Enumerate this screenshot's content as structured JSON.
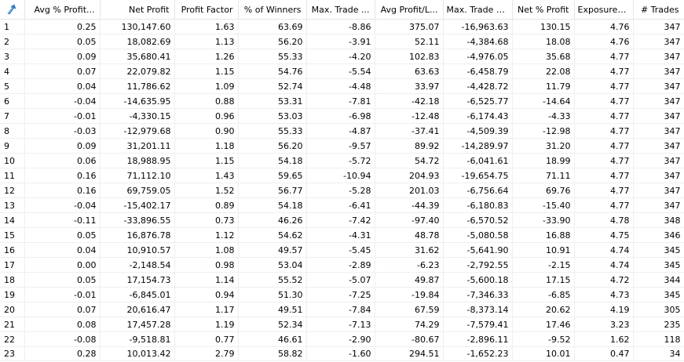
{
  "columns": [
    {
      "key": "idx",
      "label": ""
    },
    {
      "key": "avg_pct_profit",
      "label": "Avg % Profit..."
    },
    {
      "key": "net_profit",
      "label": "Net Profit"
    },
    {
      "key": "profit_factor",
      "label": "Profit Factor"
    },
    {
      "key": "pct_winners",
      "label": "% of Winners"
    },
    {
      "key": "max_trade",
      "label": "Max. Trade ..."
    },
    {
      "key": "avg_profit_loss",
      "label": "Avg Profit/L..."
    },
    {
      "key": "max_trade_dd",
      "label": "Max. Trade D..."
    },
    {
      "key": "net_pct_profit",
      "label": "Net % Profit"
    },
    {
      "key": "exposure",
      "label": "Exposure %"
    },
    {
      "key": "trades",
      "label": "# Trades"
    }
  ],
  "sort_icon": "sort-arrow-icon",
  "rows": [
    [
      "1",
      "0.25",
      "130,147.60",
      "1.63",
      "63.69",
      "-8.86",
      "375.07",
      "-16,963.63",
      "130.15",
      "4.76",
      "347"
    ],
    [
      "2",
      "0.05",
      "18,082.69",
      "1.13",
      "56.20",
      "-3.91",
      "52.11",
      "-4,384.68",
      "18.08",
      "4.76",
      "347"
    ],
    [
      "3",
      "0.09",
      "35,680.41",
      "1.26",
      "55.33",
      "-4.20",
      "102.83",
      "-4,976.05",
      "35.68",
      "4.77",
      "347"
    ],
    [
      "4",
      "0.07",
      "22,079.82",
      "1.15",
      "54.76",
      "-5.54",
      "63.63",
      "-6,458.79",
      "22.08",
      "4.77",
      "347"
    ],
    [
      "5",
      "0.04",
      "11,786.62",
      "1.09",
      "52.74",
      "-4.48",
      "33.97",
      "-4,428.72",
      "11.79",
      "4.77",
      "347"
    ],
    [
      "6",
      "-0.04",
      "-14,635.95",
      "0.88",
      "53.31",
      "-7.81",
      "-42.18",
      "-6,525.77",
      "-14.64",
      "4.77",
      "347"
    ],
    [
      "7",
      "-0.01",
      "-4,330.15",
      "0.96",
      "53.03",
      "-6.98",
      "-12.48",
      "-6,174.43",
      "-4.33",
      "4.77",
      "347"
    ],
    [
      "8",
      "-0.03",
      "-12,979.68",
      "0.90",
      "55.33",
      "-4.87",
      "-37.41",
      "-4,509.39",
      "-12.98",
      "4.77",
      "347"
    ],
    [
      "9",
      "0.09",
      "31,201.11",
      "1.18",
      "56.20",
      "-9.57",
      "89.92",
      "-14,289.97",
      "31.20",
      "4.77",
      "347"
    ],
    [
      "10",
      "0.06",
      "18,988.95",
      "1.15",
      "54.18",
      "-5.72",
      "54.72",
      "-6,041.61",
      "18.99",
      "4.77",
      "347"
    ],
    [
      "11",
      "0.16",
      "71,112.10",
      "1.43",
      "59.65",
      "-10.94",
      "204.93",
      "-19,654.75",
      "71.11",
      "4.77",
      "347"
    ],
    [
      "12",
      "0.16",
      "69,759.05",
      "1.52",
      "56.77",
      "-5.28",
      "201.03",
      "-6,756.64",
      "69.76",
      "4.77",
      "347"
    ],
    [
      "13",
      "-0.04",
      "-15,402.17",
      "0.89",
      "54.18",
      "-6.41",
      "-44.39",
      "-6,180.83",
      "-15.40",
      "4.77",
      "347"
    ],
    [
      "14",
      "-0.11",
      "-33,896.55",
      "0.73",
      "46.26",
      "-7.42",
      "-97.40",
      "-6,570.52",
      "-33.90",
      "4.78",
      "348"
    ],
    [
      "15",
      "0.05",
      "16,876.78",
      "1.12",
      "54.62",
      "-4.31",
      "48.78",
      "-5,080.58",
      "16.88",
      "4.75",
      "346"
    ],
    [
      "16",
      "0.04",
      "10,910.57",
      "1.08",
      "49.57",
      "-5.45",
      "31.62",
      "-5,641.90",
      "10.91",
      "4.74",
      "345"
    ],
    [
      "17",
      "0.00",
      "-2,148.54",
      "0.98",
      "53.04",
      "-2.89",
      "-6.23",
      "-2,792.55",
      "-2.15",
      "4.74",
      "345"
    ],
    [
      "18",
      "0.05",
      "17,154.73",
      "1.14",
      "55.52",
      "-5.07",
      "49.87",
      "-5,600.18",
      "17.15",
      "4.72",
      "344"
    ],
    [
      "19",
      "-0.01",
      "-6,845.01",
      "0.94",
      "51.30",
      "-7.25",
      "-19.84",
      "-7,346.33",
      "-6.85",
      "4.73",
      "345"
    ],
    [
      "20",
      "0.07",
      "20,616.47",
      "1.17",
      "49.51",
      "-7.84",
      "67.59",
      "-8,373.14",
      "20.62",
      "4.19",
      "305"
    ],
    [
      "21",
      "0.08",
      "17,457.28",
      "1.19",
      "52.34",
      "-7.13",
      "74.29",
      "-7,579.41",
      "17.46",
      "3.23",
      "235"
    ],
    [
      "22",
      "-0.08",
      "-9,518.81",
      "0.77",
      "46.61",
      "-2.90",
      "-80.67",
      "-2,896.11",
      "-9.52",
      "1.62",
      "118"
    ],
    [
      "23",
      "0.28",
      "10,013.42",
      "2.79",
      "58.82",
      "-1.60",
      "294.51",
      "-1,652.23",
      "10.01",
      "0.47",
      "34"
    ]
  ]
}
